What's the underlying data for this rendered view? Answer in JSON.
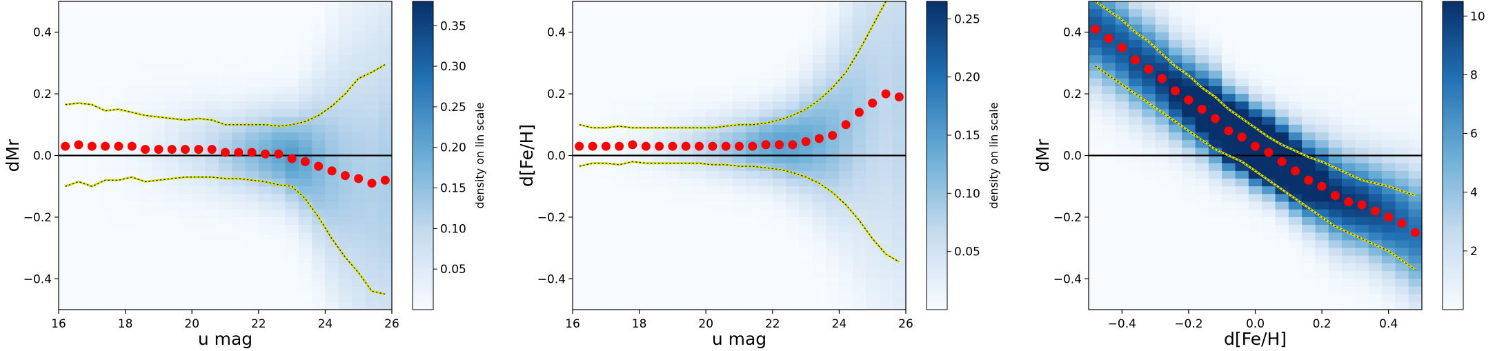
{
  "chart_data": [
    {
      "type": "heatmap",
      "xlabel": "u mag",
      "ylabel": "dMr",
      "xlim": [
        16,
        26
      ],
      "ylim": [
        -0.5,
        0.5
      ],
      "xticks": [
        16,
        18,
        20,
        22,
        24,
        26
      ],
      "yticks": [
        -0.4,
        -0.2,
        0.0,
        0.2,
        0.4
      ],
      "colorbar": {
        "label": "density on lin scale",
        "range": [
          0,
          0.38
        ],
        "ticks": [
          0.05,
          0.1,
          0.15,
          0.2,
          0.25,
          0.3,
          0.35
        ]
      },
      "reference_line_y": 0.0,
      "median_points": {
        "x": [
          16.2,
          16.6,
          17.0,
          17.4,
          17.8,
          18.2,
          18.6,
          19.0,
          19.4,
          19.8,
          20.2,
          20.6,
          21.0,
          21.4,
          21.8,
          22.2,
          22.6,
          23.0,
          23.4,
          23.8,
          24.2,
          24.6,
          25.0,
          25.4,
          25.8
        ],
        "y": [
          0.03,
          0.035,
          0.03,
          0.03,
          0.03,
          0.03,
          0.02,
          0.02,
          0.02,
          0.02,
          0.02,
          0.02,
          0.01,
          0.01,
          0.01,
          0.005,
          0.005,
          -0.01,
          -0.02,
          -0.035,
          -0.05,
          -0.065,
          -0.075,
          -0.09,
          -0.08
        ]
      },
      "upper_band": {
        "x": [
          16.2,
          16.6,
          17.0,
          17.4,
          17.8,
          18.2,
          18.6,
          19.0,
          19.4,
          19.8,
          20.2,
          20.6,
          21.0,
          21.4,
          21.8,
          22.2,
          22.6,
          23.0,
          23.4,
          23.8,
          24.2,
          24.6,
          25.0,
          25.4,
          25.8
        ],
        "y": [
          0.165,
          0.17,
          0.165,
          0.145,
          0.15,
          0.14,
          0.13,
          0.125,
          0.12,
          0.115,
          0.12,
          0.115,
          0.1,
          0.1,
          0.1,
          0.1,
          0.095,
          0.1,
          0.11,
          0.13,
          0.16,
          0.2,
          0.25,
          0.27,
          0.295
        ]
      },
      "lower_band": {
        "x": [
          16.2,
          16.6,
          17.0,
          17.4,
          17.8,
          18.2,
          18.6,
          19.0,
          19.4,
          19.8,
          20.2,
          20.6,
          21.0,
          21.4,
          21.8,
          22.2,
          22.6,
          23.0,
          23.4,
          23.8,
          24.2,
          24.6,
          25.0,
          25.4,
          25.8
        ],
        "y": [
          -0.1,
          -0.085,
          -0.1,
          -0.08,
          -0.08,
          -0.07,
          -0.085,
          -0.08,
          -0.075,
          -0.07,
          -0.07,
          -0.07,
          -0.075,
          -0.075,
          -0.08,
          -0.085,
          -0.095,
          -0.1,
          -0.14,
          -0.2,
          -0.27,
          -0.33,
          -0.38,
          -0.44,
          -0.45
        ]
      }
    },
    {
      "type": "heatmap",
      "xlabel": "u mag",
      "ylabel": "d[Fe/H]",
      "xlim": [
        16,
        26
      ],
      "ylim": [
        -0.5,
        0.5
      ],
      "xticks": [
        16,
        18,
        20,
        22,
        24,
        26
      ],
      "yticks": [
        -0.4,
        -0.2,
        0.0,
        0.2,
        0.4
      ],
      "colorbar": {
        "label": "density on lin scale",
        "range": [
          0,
          0.265
        ],
        "ticks": [
          0.05,
          0.1,
          0.15,
          0.2,
          0.25
        ]
      },
      "reference_line_y": 0.0,
      "median_points": {
        "x": [
          16.2,
          16.6,
          17.0,
          17.4,
          17.8,
          18.2,
          18.6,
          19.0,
          19.4,
          19.8,
          20.2,
          20.6,
          21.0,
          21.4,
          21.8,
          22.2,
          22.6,
          23.0,
          23.4,
          23.8,
          24.2,
          24.6,
          25.0,
          25.4,
          25.8
        ],
        "y": [
          0.03,
          0.03,
          0.03,
          0.03,
          0.035,
          0.03,
          0.03,
          0.03,
          0.03,
          0.03,
          0.03,
          0.03,
          0.03,
          0.03,
          0.035,
          0.035,
          0.035,
          0.045,
          0.055,
          0.065,
          0.1,
          0.14,
          0.17,
          0.2,
          0.19
        ]
      },
      "upper_band": {
        "x": [
          16.2,
          16.6,
          17.0,
          17.4,
          17.8,
          18.2,
          18.6,
          19.0,
          19.4,
          19.8,
          20.2,
          20.6,
          21.0,
          21.4,
          21.8,
          22.2,
          22.6,
          23.0,
          23.4,
          23.8,
          24.2,
          24.6,
          25.0,
          25.4
        ],
        "y": [
          0.1,
          0.09,
          0.09,
          0.095,
          0.09,
          0.09,
          0.09,
          0.09,
          0.09,
          0.09,
          0.09,
          0.095,
          0.1,
          0.1,
          0.105,
          0.115,
          0.13,
          0.15,
          0.18,
          0.22,
          0.27,
          0.34,
          0.42,
          0.5
        ]
      },
      "lower_band": {
        "x": [
          16.2,
          16.6,
          17.0,
          17.4,
          17.8,
          18.2,
          18.6,
          19.0,
          19.4,
          19.8,
          20.2,
          20.6,
          21.0,
          21.4,
          21.8,
          22.2,
          22.6,
          23.0,
          23.4,
          23.8,
          24.2,
          24.6,
          25.0,
          25.4,
          25.8
        ],
        "y": [
          -0.035,
          -0.025,
          -0.025,
          -0.03,
          -0.02,
          -0.025,
          -0.025,
          -0.025,
          -0.025,
          -0.025,
          -0.03,
          -0.03,
          -0.035,
          -0.035,
          -0.04,
          -0.045,
          -0.055,
          -0.07,
          -0.09,
          -0.12,
          -0.16,
          -0.21,
          -0.27,
          -0.32,
          -0.345
        ]
      }
    },
    {
      "type": "heatmap",
      "xlabel": "d[Fe/H]",
      "ylabel": "dMr",
      "xlim": [
        -0.5,
        0.5
      ],
      "ylim": [
        -0.5,
        0.5
      ],
      "xticks": [
        -0.4,
        -0.2,
        0.0,
        0.2,
        0.4
      ],
      "yticks": [
        -0.4,
        -0.2,
        0.0,
        0.2,
        0.4
      ],
      "colorbar": {
        "label": "density on lin scale",
        "range": [
          0,
          10.5
        ],
        "ticks": [
          2,
          4,
          6,
          8,
          10
        ]
      },
      "reference_line_y": 0.0,
      "median_points": {
        "x": [
          -0.48,
          -0.44,
          -0.4,
          -0.36,
          -0.32,
          -0.28,
          -0.24,
          -0.2,
          -0.16,
          -0.12,
          -0.08,
          -0.04,
          0.0,
          0.04,
          0.08,
          0.12,
          0.16,
          0.2,
          0.24,
          0.28,
          0.32,
          0.36,
          0.4,
          0.44,
          0.48
        ],
        "y": [
          0.41,
          0.38,
          0.35,
          0.31,
          0.28,
          0.25,
          0.21,
          0.18,
          0.15,
          0.12,
          0.08,
          0.06,
          0.03,
          0.01,
          -0.02,
          -0.05,
          -0.08,
          -0.1,
          -0.13,
          -0.15,
          -0.16,
          -0.18,
          -0.2,
          -0.22,
          -0.25
        ]
      },
      "upper_band": {
        "x": [
          -0.48,
          -0.44,
          -0.4,
          -0.36,
          -0.32,
          -0.28,
          -0.24,
          -0.2,
          -0.16,
          -0.12,
          -0.08,
          -0.04,
          0.0,
          0.04,
          0.08,
          0.12,
          0.16,
          0.2,
          0.24,
          0.28,
          0.32,
          0.36,
          0.4,
          0.44,
          0.48
        ],
        "y": [
          0.5,
          0.47,
          0.44,
          0.4,
          0.37,
          0.33,
          0.29,
          0.26,
          0.22,
          0.19,
          0.15,
          0.12,
          0.09,
          0.06,
          0.035,
          0.015,
          -0.005,
          -0.02,
          -0.04,
          -0.06,
          -0.08,
          -0.09,
          -0.1,
          -0.115,
          -0.13
        ]
      },
      "lower_band": {
        "x": [
          -0.48,
          -0.44,
          -0.4,
          -0.36,
          -0.32,
          -0.28,
          -0.24,
          -0.2,
          -0.16,
          -0.12,
          -0.08,
          -0.04,
          0.0,
          0.04,
          0.08,
          0.12,
          0.16,
          0.2,
          0.24,
          0.28,
          0.32,
          0.36,
          0.4,
          0.44,
          0.48
        ],
        "y": [
          0.29,
          0.26,
          0.23,
          0.2,
          0.17,
          0.14,
          0.11,
          0.08,
          0.05,
          0.02,
          0.0,
          -0.02,
          -0.05,
          -0.08,
          -0.11,
          -0.14,
          -0.17,
          -0.2,
          -0.23,
          -0.25,
          -0.27,
          -0.29,
          -0.31,
          -0.34,
          -0.37
        ]
      }
    }
  ],
  "colors": {
    "cmap_low": "#f7fbff",
    "cmap_high": "#08306b",
    "median_points": "#ff0000",
    "band_line_fill": "#d8e000",
    "band_line_dash": "#222222",
    "reference_line": "#000000"
  }
}
